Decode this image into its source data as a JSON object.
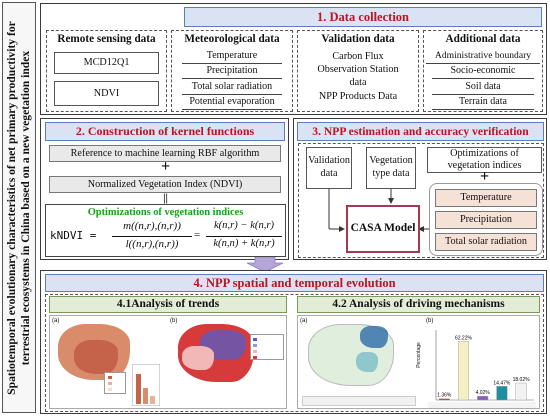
{
  "side_title": {
    "line1": "Spatiotemporal evolutionary characteristics of net primary productivity for",
    "line2": "terrestrial ecosystems in China based on a new vegetation index"
  },
  "section1": {
    "title": "1. Data collection",
    "columns": [
      {
        "heading": "Remote sensing data",
        "items": [
          "MCD12Q1",
          "NDVI"
        ]
      },
      {
        "heading": "Meteorological data",
        "items": [
          "Temperature",
          "Precipitation",
          "Total solar radiation",
          "Potential evaporation"
        ]
      },
      {
        "heading": "Validation  data",
        "items": [
          "Carbon Flux Observation Station data",
          "NPP Products Data"
        ]
      },
      {
        "heading": "Additional data",
        "items": [
          "Administrative boundary",
          "Socio-economic",
          "Soil data",
          "Terrain data"
        ]
      }
    ]
  },
  "section2": {
    "title": "2. Construction of kernel functions",
    "box1": "Reference to machine learning RBF algorithm",
    "plus": "+",
    "box2": "Normalized Vegetation Index (NDVI)",
    "equiv": "||",
    "opt_title": "Optimizations of vegetation indices",
    "formula": {
      "lhs": "kNDVI =",
      "frac1_num": "m((n,r),(n,r))",
      "frac1_den": "l((n,r),(n,r))",
      "eq": "=",
      "frac2_num": "k(n,r) − k(n,r)",
      "frac2_den": "k(n,n) + k(n,r)"
    }
  },
  "section3": {
    "title": "3. NPP estimation and accuracy verification",
    "validation": "Validation data",
    "vegetation": "Vegetation type data",
    "optimizations": "Optimizations of vegetation indices",
    "plus": "+",
    "model": "CASA Model",
    "inputs": [
      "Temperature",
      "Precipitation",
      "Total solar radiation"
    ]
  },
  "section4": {
    "title": "4. NPP spatial and temporal evolution",
    "left_title": "4.1Analysis of trends",
    "right_title": "4.2 Analysis of driving mechanisms",
    "panel_a": "(a)",
    "panel_b": "(b)",
    "chart_percentages": [
      "1.36%",
      "62.22%",
      "4.02%",
      "14.47%",
      "18.02%"
    ],
    "chart_ylabel": "Percentage"
  },
  "colors": {
    "header_red": "#c1121f",
    "header_fill": "#d9e3f3",
    "green_text": "#1aa01a",
    "model_border": "#a23a52",
    "peach": "#f6e1d6",
    "grey": "#e9e9e9",
    "arrow": "#b6a6d8"
  },
  "chart_data": {
    "type": "bar",
    "ylabel": "Percentage",
    "categories": [
      "",
      "",
      "",
      "",
      ""
    ],
    "values": [
      1.36,
      62.22,
      4.02,
      14.47,
      18.02
    ],
    "data_labels": [
      "1.36%",
      "62.22%",
      "4.02%",
      "14.47%",
      "18.02%"
    ],
    "colors": [
      "#c43a3a",
      "#f4f0c6",
      "#8a5cc4",
      "#1e8fa0",
      "#f2f2f2"
    ]
  }
}
